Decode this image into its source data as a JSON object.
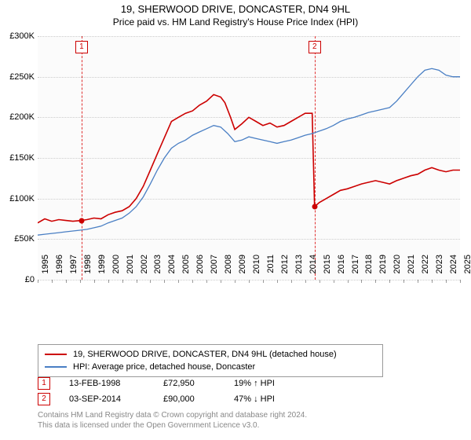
{
  "title": "19, SHERWOOD DRIVE, DONCASTER, DN4 9HL",
  "subtitle": "Price paid vs. HM Land Registry's House Price Index (HPI)",
  "chart": {
    "type": "line",
    "background_color": "#fbfbfb",
    "grid_color": "#cccccc",
    "axis_font_size": 11,
    "x": {
      "min": 1995,
      "max": 2025,
      "years": [
        1995,
        1996,
        1997,
        1998,
        1999,
        2000,
        2001,
        2002,
        2003,
        2004,
        2005,
        2006,
        2007,
        2008,
        2009,
        2010,
        2011,
        2012,
        2013,
        2014,
        2015,
        2016,
        2017,
        2018,
        2019,
        2020,
        2021,
        2022,
        2023,
        2024,
        2025
      ]
    },
    "y": {
      "min": 0,
      "max": 300000,
      "ticks": [
        0,
        50000,
        100000,
        150000,
        200000,
        250000,
        300000
      ],
      "labels": [
        "£0",
        "£50K",
        "£100K",
        "£150K",
        "£200K",
        "£250K",
        "£300K"
      ]
    },
    "series": [
      {
        "key": "property",
        "label": "19, SHERWOOD DRIVE, DONCASTER, DN4 9HL (detached house)",
        "color": "#cc0000",
        "line_width": 1.6,
        "points": [
          [
            1995.0,
            70000
          ],
          [
            1995.5,
            75000
          ],
          [
            1996.0,
            72000
          ],
          [
            1996.5,
            74000
          ],
          [
            1997.0,
            73000
          ],
          [
            1997.5,
            72000
          ],
          [
            1998.12,
            72950
          ],
          [
            1998.5,
            74000
          ],
          [
            1999.0,
            76000
          ],
          [
            1999.5,
            75000
          ],
          [
            2000.0,
            80000
          ],
          [
            2000.5,
            83000
          ],
          [
            2001.0,
            85000
          ],
          [
            2001.5,
            90000
          ],
          [
            2002.0,
            100000
          ],
          [
            2002.5,
            115000
          ],
          [
            2003.0,
            135000
          ],
          [
            2003.5,
            155000
          ],
          [
            2004.0,
            175000
          ],
          [
            2004.5,
            195000
          ],
          [
            2005.0,
            200000
          ],
          [
            2005.5,
            205000
          ],
          [
            2006.0,
            208000
          ],
          [
            2006.5,
            215000
          ],
          [
            2007.0,
            220000
          ],
          [
            2007.5,
            228000
          ],
          [
            2008.0,
            225000
          ],
          [
            2008.3,
            218000
          ],
          [
            2008.7,
            200000
          ],
          [
            2009.0,
            185000
          ],
          [
            2009.5,
            192000
          ],
          [
            2010.0,
            200000
          ],
          [
            2010.5,
            195000
          ],
          [
            2011.0,
            190000
          ],
          [
            2011.5,
            193000
          ],
          [
            2012.0,
            188000
          ],
          [
            2012.5,
            190000
          ],
          [
            2013.0,
            195000
          ],
          [
            2013.5,
            200000
          ],
          [
            2014.0,
            205000
          ],
          [
            2014.5,
            205000
          ],
          [
            2014.67,
            90000
          ],
          [
            2015.0,
            95000
          ],
          [
            2015.5,
            100000
          ],
          [
            2016.0,
            105000
          ],
          [
            2016.5,
            110000
          ],
          [
            2017.0,
            112000
          ],
          [
            2017.5,
            115000
          ],
          [
            2018.0,
            118000
          ],
          [
            2018.5,
            120000
          ],
          [
            2019.0,
            122000
          ],
          [
            2019.5,
            120000
          ],
          [
            2020.0,
            118000
          ],
          [
            2020.5,
            122000
          ],
          [
            2021.0,
            125000
          ],
          [
            2021.5,
            128000
          ],
          [
            2022.0,
            130000
          ],
          [
            2022.5,
            135000
          ],
          [
            2023.0,
            138000
          ],
          [
            2023.5,
            135000
          ],
          [
            2024.0,
            133000
          ],
          [
            2024.5,
            135000
          ],
          [
            2025.0,
            135000
          ]
        ]
      },
      {
        "key": "hpi",
        "label": "HPI: Average price, detached house, Doncaster",
        "color": "#4a7fc4",
        "line_width": 1.3,
        "points": [
          [
            1995.0,
            55000
          ],
          [
            1995.5,
            56000
          ],
          [
            1996.0,
            57000
          ],
          [
            1996.5,
            58000
          ],
          [
            1997.0,
            59000
          ],
          [
            1997.5,
            60000
          ],
          [
            1998.0,
            61000
          ],
          [
            1998.5,
            62000
          ],
          [
            1999.0,
            64000
          ],
          [
            1999.5,
            66000
          ],
          [
            2000.0,
            70000
          ],
          [
            2000.5,
            73000
          ],
          [
            2001.0,
            76000
          ],
          [
            2001.5,
            82000
          ],
          [
            2002.0,
            90000
          ],
          [
            2002.5,
            102000
          ],
          [
            2003.0,
            118000
          ],
          [
            2003.5,
            135000
          ],
          [
            2004.0,
            150000
          ],
          [
            2004.5,
            162000
          ],
          [
            2005.0,
            168000
          ],
          [
            2005.5,
            172000
          ],
          [
            2006.0,
            178000
          ],
          [
            2006.5,
            182000
          ],
          [
            2007.0,
            186000
          ],
          [
            2007.5,
            190000
          ],
          [
            2008.0,
            188000
          ],
          [
            2008.5,
            180000
          ],
          [
            2009.0,
            170000
          ],
          [
            2009.5,
            172000
          ],
          [
            2010.0,
            176000
          ],
          [
            2010.5,
            174000
          ],
          [
            2011.0,
            172000
          ],
          [
            2011.5,
            170000
          ],
          [
            2012.0,
            168000
          ],
          [
            2012.5,
            170000
          ],
          [
            2013.0,
            172000
          ],
          [
            2013.5,
            175000
          ],
          [
            2014.0,
            178000
          ],
          [
            2014.5,
            180000
          ],
          [
            2015.0,
            183000
          ],
          [
            2015.5,
            186000
          ],
          [
            2016.0,
            190000
          ],
          [
            2016.5,
            195000
          ],
          [
            2017.0,
            198000
          ],
          [
            2017.5,
            200000
          ],
          [
            2018.0,
            203000
          ],
          [
            2018.5,
            206000
          ],
          [
            2019.0,
            208000
          ],
          [
            2019.5,
            210000
          ],
          [
            2020.0,
            212000
          ],
          [
            2020.5,
            220000
          ],
          [
            2021.0,
            230000
          ],
          [
            2021.5,
            240000
          ],
          [
            2022.0,
            250000
          ],
          [
            2022.5,
            258000
          ],
          [
            2023.0,
            260000
          ],
          [
            2023.5,
            258000
          ],
          [
            2024.0,
            252000
          ],
          [
            2024.5,
            250000
          ],
          [
            2025.0,
            250000
          ]
        ]
      }
    ],
    "sale_markers": [
      {
        "n": "1",
        "year": 1998.12,
        "price": 72950,
        "color": "#cc0000"
      },
      {
        "n": "2",
        "year": 2014.67,
        "price": 90000,
        "color": "#cc0000"
      }
    ]
  },
  "legend": {
    "items": [
      {
        "color": "#cc0000",
        "label": "19, SHERWOOD DRIVE, DONCASTER, DN4 9HL (detached house)"
      },
      {
        "color": "#4a7fc4",
        "label": "HPI: Average price, detached house, Doncaster"
      }
    ]
  },
  "events": [
    {
      "n": "1",
      "date": "13-FEB-1998",
      "price": "£72,950",
      "pct": "19% ↑ HPI"
    },
    {
      "n": "2",
      "date": "03-SEP-2014",
      "price": "£90,000",
      "pct": "47% ↓ HPI"
    }
  ],
  "footnote_line1": "Contains HM Land Registry data © Crown copyright and database right 2024.",
  "footnote_line2": "This data is licensed under the Open Government Licence v3.0."
}
